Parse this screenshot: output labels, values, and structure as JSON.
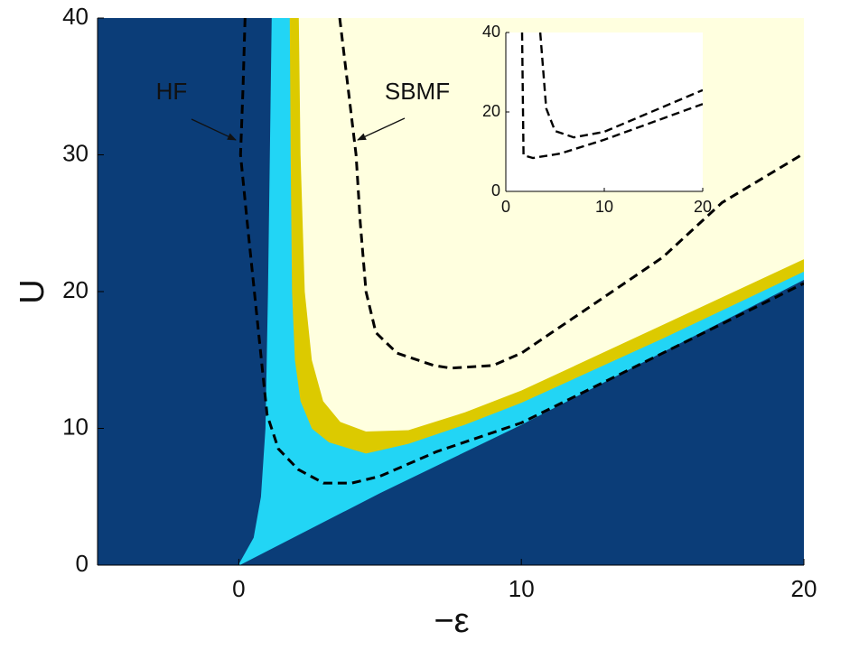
{
  "chart_data": [
    {
      "type": "phase",
      "xlabel": "−ε",
      "ylabel": "U",
      "xlim": [
        -5,
        20
      ],
      "ylim": [
        0,
        40
      ],
      "xticks": [
        0,
        10,
        20
      ],
      "yticks": [
        0,
        10,
        20,
        30,
        40
      ],
      "background": "#0b3d78",
      "regions": [
        {
          "color": "#22d5f5",
          "x": [
            0,
            0.54,
            0.8,
            0.96,
            1.05,
            1.18,
            20,
            20,
            15,
            10,
            5,
            0
          ],
          "y": [
            0,
            2,
            5,
            10,
            20,
            40,
            40,
            20.9,
            15.6,
            10.3,
            5.3,
            0
          ]
        },
        {
          "color": "#dcca00",
          "x": [
            1.82,
            1.85,
            1.9,
            2.0,
            2.2,
            2.6,
            3.2,
            4.5,
            6,
            8,
            10,
            15,
            20,
            20
          ],
          "y": [
            40,
            30,
            20,
            15,
            12,
            10,
            9,
            8.2,
            8.9,
            10.3,
            11.9,
            16.6,
            21.5,
            40
          ]
        },
        {
          "color": "#ffffdf",
          "x": [
            2.14,
            2.2,
            2.35,
            2.6,
            3.0,
            3.6,
            4.5,
            6,
            8,
            10,
            15,
            20,
            20
          ],
          "y": [
            40,
            30,
            20,
            15,
            12,
            10.5,
            9.8,
            9.9,
            11.2,
            12.8,
            17.6,
            22.4,
            40
          ]
        }
      ],
      "series": [
        {
          "name": "HF",
          "color": "#000000",
          "linestyle": "dashed",
          "x": [
            0.22,
            0.15,
            0.06,
            0.3,
            0.55,
            0.8,
            1.0,
            1.4,
            2.1,
            3,
            4,
            5,
            7,
            10,
            15,
            20
          ],
          "y": [
            40,
            35,
            30,
            25,
            20,
            15,
            11,
            8.5,
            7,
            6,
            6,
            6.5,
            8.3,
            10.4,
            15.5,
            20.6
          ]
        },
        {
          "name": "SBMF",
          "color": "#000000",
          "linestyle": "dashed",
          "x": [
            3.57,
            4.15,
            4.3,
            4.5,
            4.85,
            5.6,
            6.9,
            7.5,
            9,
            10,
            12,
            15,
            17.1,
            20
          ],
          "y": [
            40,
            30,
            25,
            20,
            17,
            15.5,
            14.6,
            14.4,
            14.6,
            15.5,
            18.3,
            22.5,
            26.5,
            30.1
          ]
        }
      ]
    },
    {
      "type": "line",
      "xlim": [
        0,
        20
      ],
      "ylim": [
        0,
        40
      ],
      "xticks": [
        0,
        10,
        20
      ],
      "yticks": [
        0,
        20,
        40
      ],
      "background": "#ffffff",
      "series": [
        {
          "color": "#000000",
          "linestyle": "dashed",
          "x": [
            3.5,
            4.1,
            5,
            6.9,
            10,
            20
          ],
          "y": [
            40,
            20.9,
            15.2,
            13.6,
            15,
            25.5
          ]
        },
        {
          "color": "#000000",
          "linestyle": "dashed",
          "x": [
            1.65,
            1.8,
            2.75,
            5.5,
            10,
            20
          ],
          "y": [
            40,
            9.1,
            8.4,
            9.5,
            13,
            22
          ]
        }
      ]
    }
  ]
}
